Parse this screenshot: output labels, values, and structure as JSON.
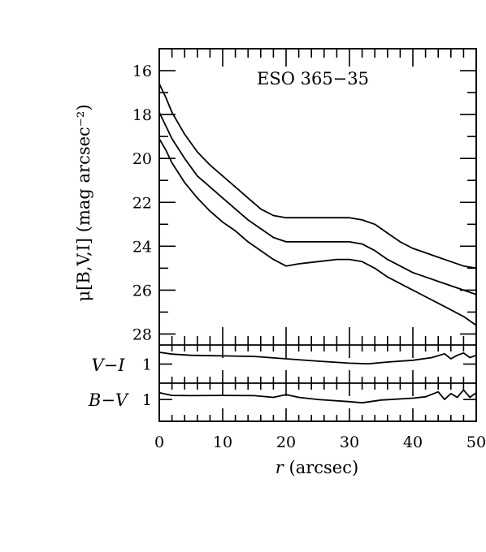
{
  "chart_data": {
    "type": "line",
    "title": "ESO 365−35",
    "xlabel_var": "r",
    "xlabel_unit": " (arcsec)",
    "ylabel": "μ[B,V,I] (mag arcsec⁻²)",
    "xlim": [
      0,
      50
    ],
    "x_ticks": [
      "0",
      "10",
      "20",
      "30",
      "40",
      "50"
    ],
    "panels": [
      {
        "id": "surface-brightness",
        "ylim": [
          28.5,
          15
        ],
        "inverted": true,
        "y_ticks": [
          "16",
          "18",
          "20",
          "22",
          "24",
          "26",
          "28"
        ],
        "series": [
          {
            "x": [
              0,
              1,
              2,
              4,
              6,
              8,
              10,
              12,
              14,
              16,
              18,
              20,
              22,
              25,
              28,
              30,
              32,
              34,
              36,
              38,
              40,
              42,
              44,
              46,
              48,
              50
            ],
            "y": [
              16.6,
              17.2,
              17.9,
              18.9,
              19.7,
              20.3,
              20.8,
              21.3,
              21.8,
              22.3,
              22.6,
              22.7,
              22.7,
              22.7,
              22.7,
              22.7,
              22.8,
              23.0,
              23.4,
              23.8,
              24.1,
              24.3,
              24.5,
              24.7,
              24.9,
              25.0
            ]
          },
          {
            "x": [
              0,
              1,
              2,
              4,
              6,
              8,
              10,
              12,
              14,
              16,
              18,
              20,
              22,
              25,
              28,
              30,
              32,
              34,
              36,
              38,
              40,
              42,
              44,
              46,
              48,
              50
            ],
            "y": [
              17.9,
              18.5,
              19.1,
              20.0,
              20.8,
              21.3,
              21.8,
              22.3,
              22.8,
              23.2,
              23.6,
              23.8,
              23.8,
              23.8,
              23.8,
              23.8,
              23.9,
              24.2,
              24.6,
              24.9,
              25.2,
              25.4,
              25.6,
              25.8,
              26.0,
              26.2
            ]
          },
          {
            "x": [
              0,
              1,
              2,
              4,
              6,
              8,
              10,
              12,
              14,
              16,
              18,
              20,
              22,
              25,
              28,
              30,
              32,
              34,
              36,
              38,
              40,
              42,
              44,
              46,
              48,
              50
            ],
            "y": [
              19.1,
              19.6,
              20.2,
              21.1,
              21.8,
              22.4,
              22.9,
              23.3,
              23.8,
              24.2,
              24.6,
              24.9,
              24.8,
              24.7,
              24.6,
              24.6,
              24.7,
              25.0,
              25.4,
              25.7,
              26.0,
              26.3,
              26.6,
              26.9,
              27.2,
              27.6
            ]
          }
        ]
      },
      {
        "id": "v-minus-i",
        "label": "V−I",
        "ylim": [
          1.65,
          0.35
        ],
        "inverted": true,
        "y_ticks": [
          "1"
        ],
        "x": [
          0,
          2,
          5,
          10,
          15,
          20,
          25,
          30,
          33,
          36,
          40,
          43,
          45,
          46,
          47,
          48,
          49,
          50
        ],
        "y": [
          0.6,
          0.66,
          0.7,
          0.72,
          0.74,
          0.82,
          0.9,
          0.97,
          0.99,
          0.93,
          0.87,
          0.78,
          0.65,
          0.82,
          0.7,
          0.62,
          0.78,
          0.7
        ]
      },
      {
        "id": "b-minus-v",
        "label": "B−V",
        "ylim": [
          1.8,
          0.4
        ],
        "inverted": true,
        "y_ticks": [
          "1"
        ],
        "x": [
          0,
          2,
          5,
          10,
          15,
          18,
          20,
          22,
          25,
          30,
          32,
          35,
          40,
          42,
          44,
          45,
          46,
          47,
          48,
          49,
          50
        ],
        "y": [
          0.75,
          0.85,
          0.86,
          0.85,
          0.86,
          0.92,
          0.82,
          0.92,
          1.0,
          1.08,
          1.12,
          1.02,
          0.95,
          0.9,
          0.72,
          1.0,
          0.78,
          0.92,
          0.65,
          0.92,
          0.75
        ]
      }
    ]
  }
}
